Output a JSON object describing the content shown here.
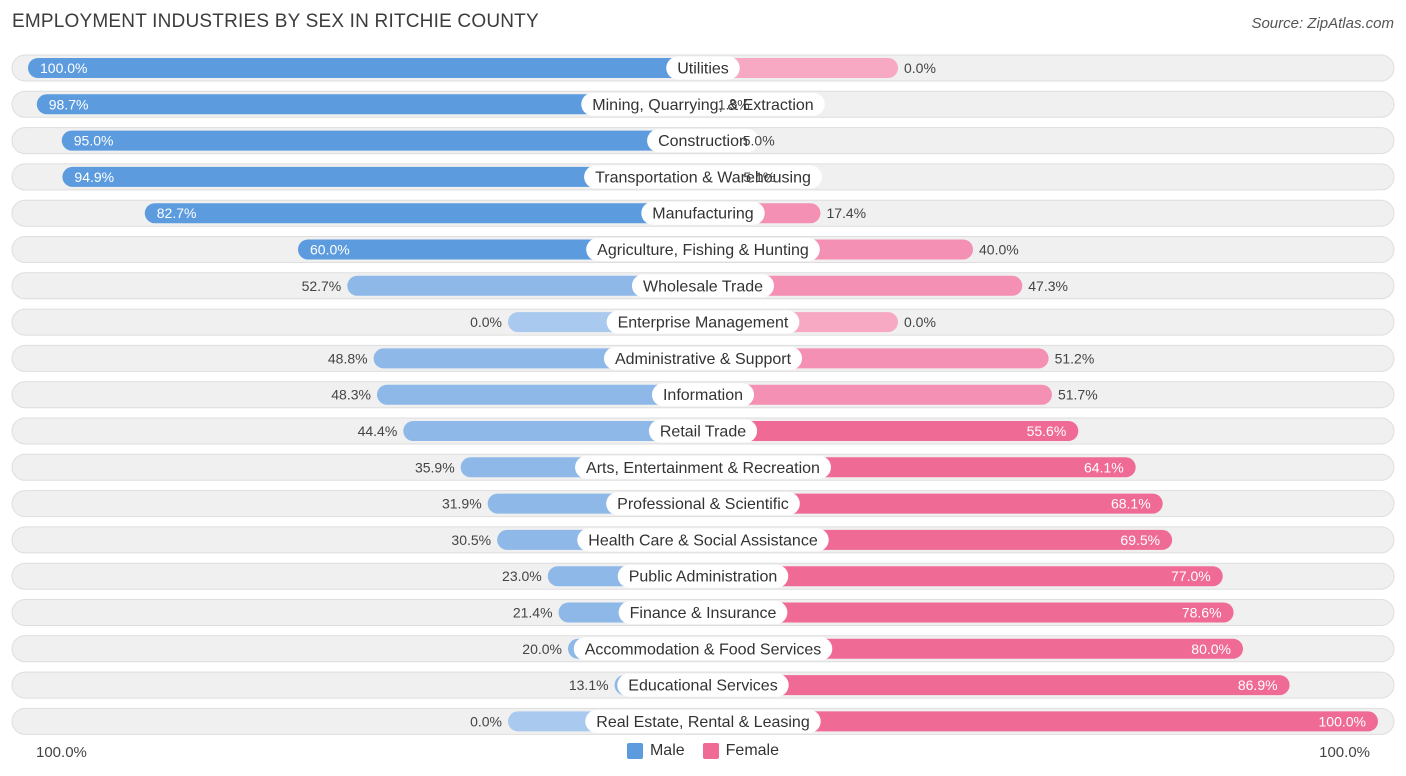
{
  "header": {
    "title": "EMPLOYMENT INDUSTRIES BY SEX IN RITCHIE COUNTY",
    "source": "Source: ZipAtlas.com"
  },
  "legend": {
    "male_label": "Male",
    "female_label": "Female"
  },
  "axis": {
    "left_label": "100.0%",
    "right_label": "100.0%"
  },
  "colors": {
    "male": "#5b9bde",
    "male_light": "#a9c9ee",
    "female": "#f06a96",
    "female_light": "#f7a8c2",
    "row_bg": "#f0f0f0",
    "row_border": "#dedede"
  },
  "chart_data": {
    "type": "bar",
    "orientation": "horizontal-diverging",
    "title": "EMPLOYMENT INDUSTRIES BY SEX IN RITCHIE COUNTY",
    "xlim": [
      -100,
      100
    ],
    "categories": [
      "Utilities",
      "Mining, Quarrying, & Extraction",
      "Construction",
      "Transportation & Warehousing",
      "Manufacturing",
      "Agriculture, Fishing & Hunting",
      "Wholesale Trade",
      "Enterprise Management",
      "Administrative & Support",
      "Information",
      "Retail Trade",
      "Arts, Entertainment & Recreation",
      "Professional & Scientific",
      "Health Care & Social Assistance",
      "Public Administration",
      "Finance & Insurance",
      "Accommodation & Food Services",
      "Educational Services",
      "Real Estate, Rental & Leasing"
    ],
    "series": [
      {
        "name": "Male",
        "values": [
          100.0,
          98.7,
          95.0,
          94.9,
          82.7,
          60.0,
          52.7,
          0.0,
          48.8,
          48.3,
          44.4,
          35.9,
          31.9,
          30.5,
          23.0,
          21.4,
          20.0,
          13.1,
          0.0
        ],
        "labels": [
          "100.0%",
          "98.7%",
          "95.0%",
          "94.9%",
          "82.7%",
          "60.0%",
          "52.7%",
          "0.0%",
          "48.8%",
          "48.3%",
          "44.4%",
          "35.9%",
          "31.9%",
          "30.5%",
          "23.0%",
          "21.4%",
          "20.0%",
          "13.1%",
          "0.0%"
        ]
      },
      {
        "name": "Female",
        "values": [
          0.0,
          1.3,
          5.0,
          5.1,
          17.4,
          40.0,
          47.3,
          0.0,
          51.2,
          51.7,
          55.6,
          64.1,
          68.1,
          69.5,
          77.0,
          78.6,
          80.0,
          86.9,
          100.0
        ],
        "labels": [
          "0.0%",
          "1.3%",
          "5.0%",
          "5.1%",
          "17.4%",
          "40.0%",
          "47.3%",
          "0.0%",
          "51.2%",
          "51.7%",
          "55.6%",
          "64.1%",
          "68.1%",
          "69.5%",
          "77.0%",
          "78.6%",
          "80.0%",
          "86.9%",
          "100.0%"
        ]
      }
    ]
  }
}
